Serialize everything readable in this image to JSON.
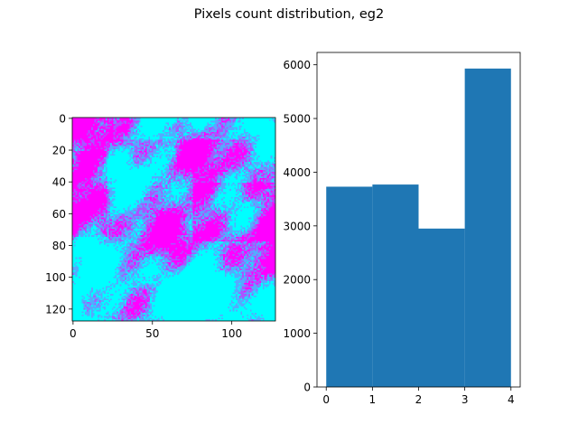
{
  "figure": {
    "title": "Pixels count distribution, eg2"
  },
  "chart_data": [
    {
      "type": "heatmap",
      "title": "",
      "xlabel": "",
      "ylabel": "",
      "xlim": [
        0,
        128
      ],
      "ylim": [
        128,
        0
      ],
      "x_ticks": [
        0,
        50,
        100
      ],
      "y_ticks": [
        0,
        20,
        40,
        60,
        80,
        100,
        120
      ],
      "grid_size": [
        128,
        128
      ],
      "palette": [
        "#00ffff",
        "#55aaff",
        "#aa55ff",
        "#ff00ff"
      ],
      "colormap": "cool"
    },
    {
      "type": "bar",
      "title": "",
      "xlabel": "",
      "ylabel": "",
      "bin_edges": [
        0,
        1,
        2,
        3,
        4
      ],
      "values": [
        3730,
        3770,
        2950,
        5930
      ],
      "xlim": [
        -0.2,
        4.2
      ],
      "ylim": [
        0,
        6230
      ],
      "x_ticks": [
        0,
        1,
        2,
        3,
        4
      ],
      "y_ticks": [
        0,
        1000,
        2000,
        3000,
        4000,
        5000,
        6000
      ],
      "bar_color": "#1f77b4",
      "grid": false
    }
  ]
}
